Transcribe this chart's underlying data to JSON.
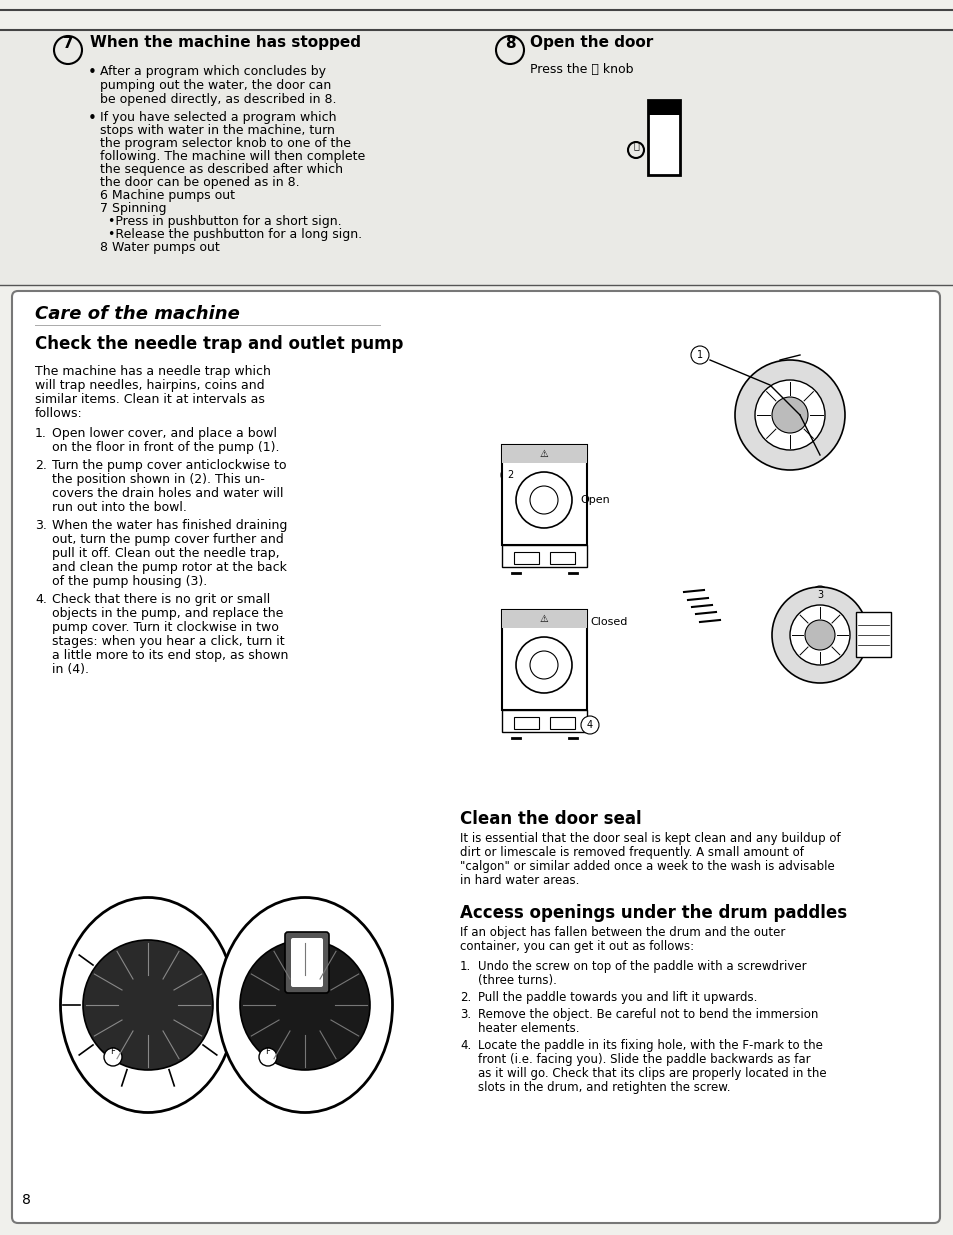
{
  "page_bg": "#f0f0ec",
  "top_section_bg": "#eeeeea",
  "card_bg": "#ffffff",
  "page_number": "8",
  "section7_title": "When the machine has stopped",
  "section7_bullet1_lines": [
    "After a program which concludes by",
    "pumping out the water, the door can",
    "be opened directly, as described in 8."
  ],
  "section7_bullet2_lines": [
    "If you have selected a program which",
    "stops with water in the machine, turn",
    "the program selector knob to one of the",
    "following. The machine will then complete",
    "the sequence as described after which",
    "the door can be opened as in 8.",
    "6 Machine pumps out",
    "7 Spinning",
    "  •Press in pushbutton for a short sign.",
    "  •Release the pushbutton for a long sign.",
    "8 Water pumps out"
  ],
  "section8_title": "Open the door",
  "section8_sub": "Press the ⓘ knob",
  "care_italic_title": "Care of the machine",
  "check_title": "Check the needle trap and outlet pump",
  "check_para_lines": [
    "The machine has a needle trap which",
    "will trap needles, hairpins, coins and",
    "similar items. Clean it at intervals as",
    "follows:"
  ],
  "check_items": [
    [
      "Open lower cover, and place a bowl",
      "on the floor in front of the pump (1)."
    ],
    [
      "Turn the pump cover anticlockwise to",
      "the position shown in (2). This un-",
      "covers the drain holes and water will",
      "run out into the bowl."
    ],
    [
      "When the water has finished draining",
      "out, turn the pump cover further and",
      "pull it off. Clean out the needle trap,",
      "and clean the pump rotor at the back",
      "of the pump housing (3)."
    ],
    [
      "Check that there is no grit or small",
      "objects in the pump, and replace the",
      "pump cover. Turn it clockwise in two",
      "stages: when you hear a click, turn it",
      "a little more to its end stop, as shown",
      "in (4)."
    ]
  ],
  "clean_seal_title": "Clean the door seal",
  "clean_seal_para_lines": [
    "It is essential that the door seal is kept clean and any buildup of",
    "dirt or limescale is removed frequently. A small amount of",
    "\"calgon\" or similar added once a week to the wash is advisable",
    "in hard water areas."
  ],
  "access_title": "Access openings under the drum paddles",
  "access_para_lines": [
    "If an object has fallen between the drum and the outer",
    "container, you can get it out as follows:"
  ],
  "access_items": [
    [
      "Undo the screw on top of the paddle with a screwdriver",
      "(three turns)."
    ],
    [
      "Pull the paddle towards you and lift it upwards."
    ],
    [
      "Remove the object. Be careful not to bend the immersion",
      "heater elements."
    ],
    [
      "Locate the paddle in its fixing hole, with the F-mark to the",
      "front (i.e. facing you). Slide the paddle backwards as far",
      "as it will go. Check that its clips are properly located in the",
      "slots in the drum, and retighten the screw."
    ]
  ]
}
